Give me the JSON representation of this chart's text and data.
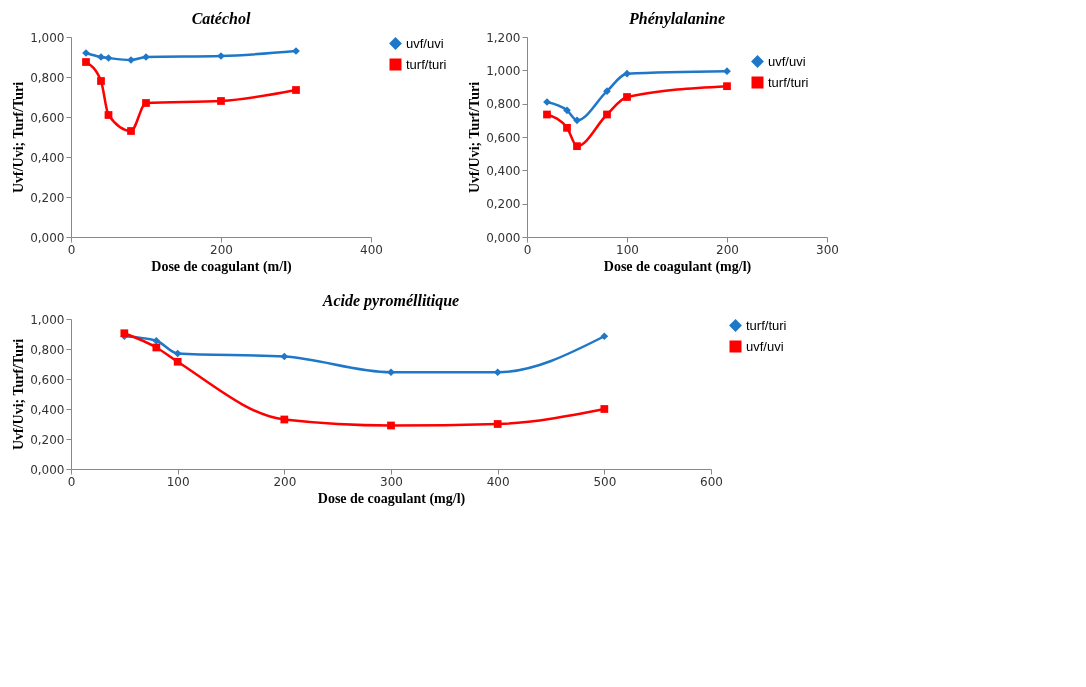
{
  "chart_data": [
    {
      "type": "line",
      "title": "Catéchol",
      "xlabel": "Dose de coagulant (m/l)",
      "ylabel": "Uvf/Uvi; Turf/Turi",
      "legend": "right",
      "grid": false,
      "xlim": [
        0,
        400
      ],
      "xticks": [
        0,
        200,
        400
      ],
      "ylim": [
        0,
        1
      ],
      "yticks": [
        {
          "value": 0,
          "label": "0,000"
        },
        {
          "value": 0.2,
          "label": "0,200"
        },
        {
          "value": 0.4,
          "label": "0,400"
        },
        {
          "value": 0.6,
          "label": "0,600"
        },
        {
          "value": 0.8,
          "label": "0,800"
        },
        {
          "value": 1,
          "label": "1,000"
        }
      ],
      "x": [
        20,
        40,
        50,
        80,
        100,
        200,
        300
      ],
      "series": [
        {
          "name": "uvf/uvi",
          "color": "#1f77c8",
          "marker": "diamond",
          "values": [
            0.92,
            0.9,
            0.895,
            0.885,
            0.9,
            0.905,
            0.93
          ]
        },
        {
          "name": "turf/turi",
          "color": "#ff0000",
          "marker": "square",
          "values": [
            0.875,
            0.78,
            0.61,
            0.53,
            0.67,
            0.68,
            0.735
          ]
        }
      ]
    },
    {
      "type": "line",
      "title": "Phénylalanine",
      "xlabel": "Dose de coagulant (mg/l)",
      "ylabel": "Uvf/Uvi; Turf/Turi",
      "legend": "top right",
      "grid": false,
      "xlim": [
        0,
        300
      ],
      "xticks": [
        0,
        100,
        200,
        300
      ],
      "ylim": [
        0,
        1.2
      ],
      "yticks": [
        {
          "value": 0,
          "label": "0,000"
        },
        {
          "value": 0.2,
          "label": "0,200"
        },
        {
          "value": 0.4,
          "label": "0,400"
        },
        {
          "value": 0.6,
          "label": "0,600"
        },
        {
          "value": 0.8,
          "label": "0,800"
        },
        {
          "value": 1,
          "label": "1,000"
        },
        {
          "value": 1.2,
          "label": "1,200"
        }
      ],
      "x": [
        20,
        40,
        50,
        80,
        100,
        200
      ],
      "series": [
        {
          "name": "uvf/uvi",
          "color": "#1f77c8",
          "marker": "diamond",
          "values": [
            0.81,
            0.76,
            0.7,
            0.875,
            0.98,
            0.995
          ]
        },
        {
          "name": "turf/turi",
          "color": "#ff0000",
          "marker": "square",
          "values": [
            0.735,
            0.655,
            0.545,
            0.735,
            0.84,
            0.905
          ]
        }
      ]
    },
    {
      "type": "line",
      "title": "Acide pyroméllitique",
      "xlabel": "Dose de coagulant (mg/l)",
      "ylabel": "Uvf/Uvi; Turf/Turi",
      "legend": "right",
      "grid": false,
      "xlim": [
        0,
        600
      ],
      "xticks": [
        0,
        100,
        200,
        300,
        400,
        500,
        600
      ],
      "ylim": [
        0,
        1
      ],
      "yticks": [
        {
          "value": 0,
          "label": "0,000"
        },
        {
          "value": 0.2,
          "label": "0,200"
        },
        {
          "value": 0.4,
          "label": "0,400"
        },
        {
          "value": 0.6,
          "label": "0,600"
        },
        {
          "value": 0.8,
          "label": "0,800"
        },
        {
          "value": 1,
          "label": "1,000"
        }
      ],
      "x": [
        50,
        80,
        100,
        200,
        300,
        400,
        500
      ],
      "series": [
        {
          "name": "turf/turi",
          "color": "#1f77c8",
          "marker": "diamond",
          "values": [
            0.885,
            0.855,
            0.77,
            0.75,
            0.645,
            0.645,
            0.885
          ]
        },
        {
          "name": "uvf/uvi",
          "color": "#ff0000",
          "marker": "square",
          "values": [
            0.905,
            0.81,
            0.715,
            0.33,
            0.29,
            0.3,
            0.4
          ]
        }
      ]
    }
  ]
}
